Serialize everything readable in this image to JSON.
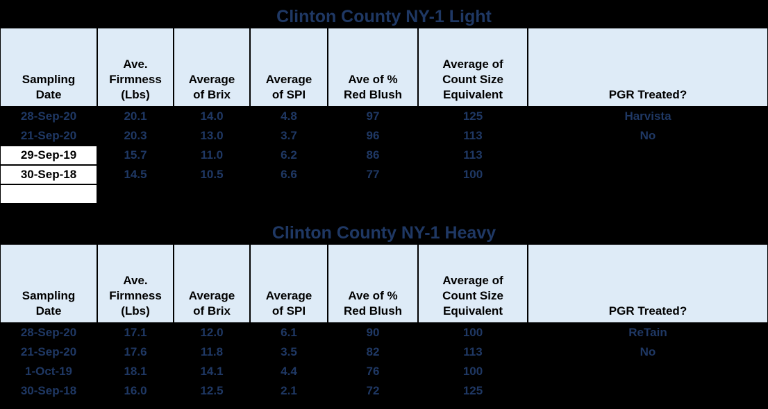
{
  "colors": {
    "page_bg": "#000000",
    "title_text": "#1f3864",
    "header_bg": "#deebf7",
    "header_text": "#000000",
    "data_text": "#1f3864",
    "grid_border": "#000000",
    "highlight_cell_bg": "#ffffff",
    "highlight_cell_text": "#000000"
  },
  "tables": [
    {
      "title": "Clinton County NY-1 Light",
      "headers": [
        "Sampling\nDate",
        "Ave.\nFirmness\n(Lbs)",
        "Average\nof Brix",
        "Average\nof SPI",
        "Ave of %\nRed Blush",
        "Average of\nCount Size\nEquivalent",
        "PGR Treated?"
      ],
      "rows": [
        [
          "28-Sep-20",
          "20.1",
          "14.0",
          "4.8",
          "97",
          "125",
          "Harvista"
        ],
        [
          "21-Sep-20",
          "20.3",
          "13.0",
          "3.7",
          "96",
          "113",
          "No"
        ],
        [
          "29-Sep-19",
          "15.7",
          "11.0",
          "6.2",
          "86",
          "113",
          ""
        ],
        [
          "30-Sep-18",
          "14.5",
          "10.5",
          "6.6",
          "77",
          "100",
          ""
        ],
        [
          "",
          "",
          "",
          "",
          "",
          "",
          ""
        ]
      ]
    },
    {
      "title": "Clinton County NY-1 Heavy",
      "headers": [
        "Sampling\nDate",
        "Ave.\nFirmness\n(Lbs)",
        "Average\nof Brix",
        "Average\nof SPI",
        "Ave of %\nRed Blush",
        "Average of\nCount Size\nEquivalent",
        "PGR Treated?"
      ],
      "rows": [
        [
          "28-Sep-20",
          "17.1",
          "12.0",
          "6.1",
          "90",
          "100",
          "ReTain"
        ],
        [
          "21-Sep-20",
          "17.6",
          "11.8",
          "3.5",
          "82",
          "113",
          "No"
        ],
        [
          "1-Oct-19",
          "18.1",
          "14.1",
          "4.4",
          "76",
          "100",
          ""
        ],
        [
          "30-Sep-18",
          "16.0",
          "12.5",
          "2.1",
          "72",
          "125",
          ""
        ]
      ]
    }
  ]
}
